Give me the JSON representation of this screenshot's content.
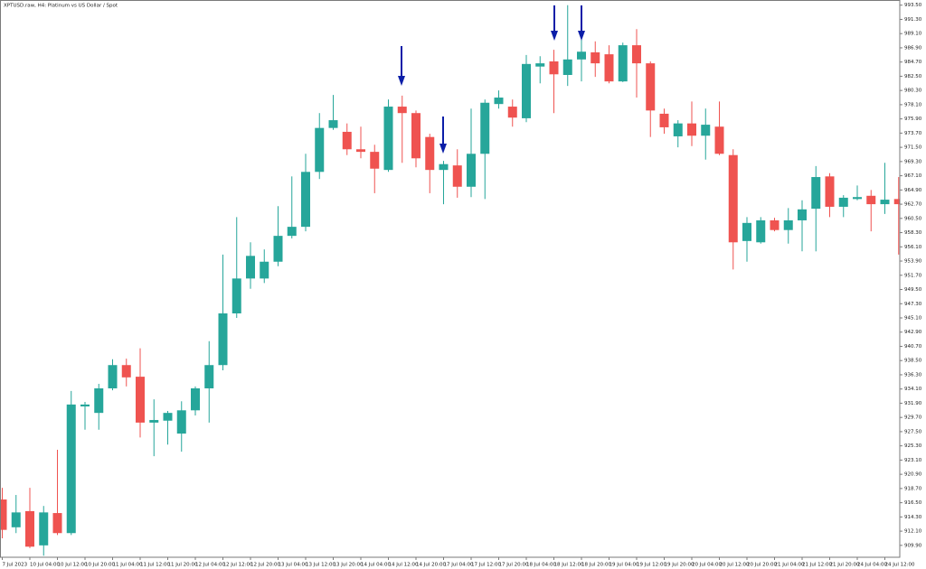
{
  "chart_data": {
    "type": "candlestick",
    "title": "XPTUSD.raw, H4:  Platinum vs US Dollar / Spot",
    "up_color": "#26a69a",
    "down_color": "#ef5350",
    "categories": [
      "7 Jul 2023",
      null,
      "10 Jul 04:00",
      null,
      "10 Jul 12:00",
      null,
      "10 Jul 20:00",
      null,
      "11 Jul 04:00",
      null,
      "11 Jul 12:00",
      null,
      "11 Jul 20:00",
      null,
      "12 Jul 04:00",
      null,
      "12 Jul 12:00",
      null,
      "12 Jul 20:00",
      null,
      "13 Jul 04:00",
      null,
      "13 Jul 12:00",
      null,
      "13 Jul 20:00",
      null,
      "14 Jul 04:00",
      null,
      "14 Jul 12:00",
      null,
      "14 Jul 20:00",
      null,
      "17 Jul 04:00",
      null,
      "17 Jul 12:00",
      null,
      "17 Jul 20:00",
      null,
      "18 Jul 04:00",
      null,
      "18 Jul 12:00",
      null,
      "18 Jul 20:00",
      null,
      "19 Jul 04:00",
      null,
      "19 Jul 12:00",
      null,
      "19 Jul 20:00",
      null,
      "20 Jul 04:00",
      null,
      "20 Jul 12:00",
      null,
      "20 Jul 20:00",
      null,
      "21 Jul 04:00",
      null,
      "21 Jul 12:00",
      null,
      "21 Jul 20:00",
      null,
      "24 Jul 04:00",
      null,
      "24 Jul 12:00",
      null
    ],
    "open": [
      917.0,
      912.7,
      915.2,
      909.9,
      914.9,
      911.8,
      931.4,
      930.4,
      934.2,
      937.8,
      936.0,
      928.9,
      929.2,
      927.2,
      930.8,
      934.2,
      937.8,
      945.8,
      951.2,
      951.2,
      953.8,
      957.8,
      959.2,
      967.7,
      974.5,
      973.9,
      971.2,
      970.8,
      968.0,
      977.8,
      976.8,
      973.1,
      968.0,
      968.7,
      965.4,
      970.5,
      978.2,
      977.8,
      976.0,
      984.0,
      984.8,
      982.7,
      985.1,
      986.2,
      985.9,
      981.7,
      987.3,
      984.5,
      976.7,
      973.2,
      975.2,
      973.3,
      974.7,
      970.3,
      957.0,
      956.8,
      960.2,
      958.7,
      960.2,
      962.0,
      967.0,
      962.3,
      963.5,
      964.0,
      962.7,
      963.5
    ],
    "high": [
      918.8,
      917.7,
      918.8,
      916.0,
      924.7,
      933.8,
      932.1,
      934.9,
      938.7,
      938.8,
      940.4,
      932.5,
      930.7,
      932.2,
      934.5,
      941.5,
      954.9,
      960.7,
      956.8,
      955.7,
      962.4,
      967.0,
      970.5,
      976.8,
      979.6,
      975.2,
      974.7,
      971.9,
      978.9,
      979.5,
      977.2,
      973.6,
      969.4,
      971.2,
      977.5,
      978.9,
      980.3,
      978.9,
      985.8,
      985.6,
      986.6,
      993.5,
      988.4,
      987.9,
      987.3,
      987.7,
      989.8,
      984.8,
      977.5,
      975.7,
      978.6,
      977.5,
      978.6,
      971.2,
      960.7,
      960.7,
      960.6,
      962.1,
      963.3,
      968.6,
      967.5,
      964.1,
      965.6,
      964.9,
      969.1,
      966.9
    ],
    "low": [
      911.0,
      911.8,
      909.5,
      908.3,
      911.5,
      911.5,
      927.8,
      927.8,
      933.9,
      934.5,
      926.6,
      923.7,
      925.5,
      924.4,
      930.0,
      928.9,
      937.0,
      945.1,
      949.6,
      950.5,
      953.1,
      957.4,
      958.5,
      966.6,
      974.2,
      970.3,
      969.8,
      964.4,
      967.7,
      969.1,
      968.4,
      964.4,
      962.7,
      963.7,
      963.8,
      963.5,
      977.5,
      974.7,
      975.4,
      981.4,
      976.8,
      981.0,
      981.7,
      982.4,
      981.4,
      981.6,
      979.2,
      973.1,
      973.6,
      971.5,
      971.7,
      969.6,
      970.3,
      952.6,
      953.8,
      956.6,
      958.5,
      956.6,
      955.4,
      955.4,
      960.7,
      960.7,
      963.3,
      958.5,
      961.2,
      954.9
    ],
    "close": [
      912.3,
      915.0,
      909.7,
      915.0,
      911.8,
      931.7,
      931.7,
      934.2,
      937.8,
      935.9,
      928.9,
      929.3,
      930.4,
      930.8,
      934.2,
      937.8,
      945.8,
      951.2,
      954.7,
      953.8,
      957.8,
      959.2,
      967.7,
      974.5,
      975.7,
      971.2,
      970.8,
      968.2,
      977.8,
      976.8,
      969.8,
      968.0,
      968.9,
      965.4,
      970.5,
      978.4,
      979.2,
      976.1,
      984.4,
      984.5,
      982.8,
      985.1,
      986.3,
      984.5,
      981.7,
      987.3,
      984.5,
      977.2,
      974.6,
      975.2,
      973.3,
      975.0,
      970.5,
      956.8,
      959.8,
      960.2,
      958.7,
      960.2,
      961.9,
      966.9,
      962.3,
      963.7,
      963.8,
      962.7,
      963.4,
      962.7
    ],
    "ylim": [
      908.2,
      994.3
    ],
    "yticks": [
      {
        "value": 993.5,
        "label": "993.50"
      },
      {
        "value": 991.3,
        "label": "991.30"
      },
      {
        "value": 989.1,
        "label": "989.10"
      },
      {
        "value": 986.9,
        "label": "986.90"
      },
      {
        "value": 984.7,
        "label": "984.70"
      },
      {
        "value": 982.5,
        "label": "982.50"
      },
      {
        "value": 980.3,
        "label": "980.30"
      },
      {
        "value": 978.1,
        "label": "978.10"
      },
      {
        "value": 975.9,
        "label": "975.90"
      },
      {
        "value": 973.7,
        "label": "973.70"
      },
      {
        "value": 971.5,
        "label": "971.50"
      },
      {
        "value": 969.3,
        "label": "969.30"
      },
      {
        "value": 967.1,
        "label": "967.10"
      },
      {
        "value": 964.9,
        "label": "964.90"
      },
      {
        "value": 962.7,
        "label": "962.70"
      },
      {
        "value": 960.5,
        "label": "960.50"
      },
      {
        "value": 958.3,
        "label": "958.30"
      },
      {
        "value": 956.1,
        "label": "956.10"
      },
      {
        "value": 953.9,
        "label": "953.90"
      },
      {
        "value": 951.7,
        "label": "951.70"
      },
      {
        "value": 949.5,
        "label": "949.50"
      },
      {
        "value": 947.3,
        "label": "947.30"
      },
      {
        "value": 945.1,
        "label": "945.10"
      },
      {
        "value": 942.9,
        "label": "942.90"
      },
      {
        "value": 940.7,
        "label": "940.70"
      },
      {
        "value": 938.5,
        "label": "938.50"
      },
      {
        "value": 936.3,
        "label": "936.30"
      },
      {
        "value": 934.1,
        "label": "934.10"
      },
      {
        "value": 931.9,
        "label": "931.90"
      },
      {
        "value": 929.7,
        "label": "929.70"
      },
      {
        "value": 927.5,
        "label": "927.50"
      },
      {
        "value": 925.3,
        "label": "925.30"
      },
      {
        "value": 923.1,
        "label": "923.10"
      },
      {
        "value": 920.9,
        "label": "920.90"
      },
      {
        "value": 918.7,
        "label": "918.70"
      },
      {
        "value": 916.5,
        "label": "916.50"
      },
      {
        "value": 914.3,
        "label": "914.30"
      },
      {
        "value": 912.1,
        "label": "912.10"
      },
      {
        "value": 909.9,
        "label": "909.90"
      }
    ]
  }
}
